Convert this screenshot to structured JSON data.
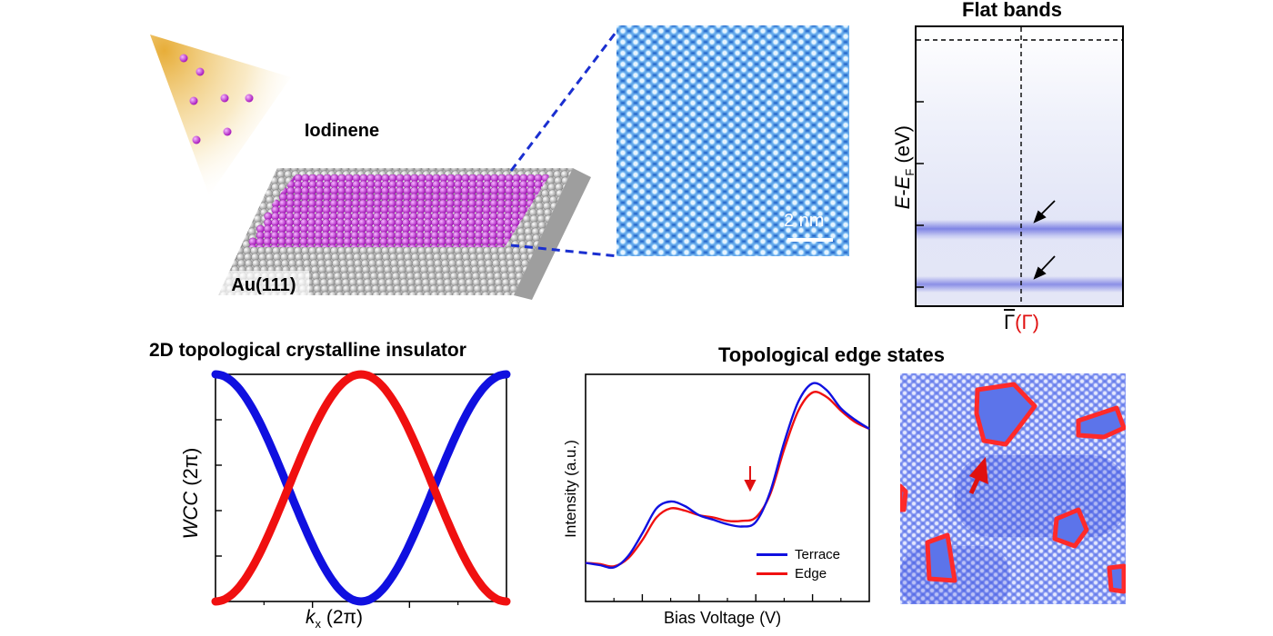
{
  "colors": {
    "iodine": "#c21fd4",
    "gold_fade": "#e8b84a",
    "stm_blue": "#2a78d8",
    "arpes_bg": "#eceff9",
    "arpes_band": "#6f72e0",
    "blue_line": "#1010e0",
    "red_line": "#f01010",
    "edge_bg": "#4c66e6"
  },
  "panel_a": {
    "material_label": "Iodinene",
    "substrate_label": "Au(111)",
    "scale_bar_label": "2 nm"
  },
  "panel_b": {
    "title": "Flat bands",
    "ylabel_e": "E",
    "ylabel_minus": "-",
    "ylabel_ef": "E",
    "ylabel_f_sub": "F",
    "ylabel_unit": " (eV)",
    "xlabel_gamma_bar": "Γ",
    "xlabel_gamma_paren": "(Γ)"
  },
  "panel_c": {
    "title": "2D topological crystalline insulator",
    "ylabel_wcc": "WCC",
    "ylabel_unit": " (2π)",
    "xlabel_k": "k",
    "xlabel_sub": "x",
    "xlabel_unit": " (2π)"
  },
  "panel_d": {
    "title": "Topological edge states",
    "xlabel": "Bias Voltage (V)",
    "ylabel": "Intensity (a.u.)",
    "legend": [
      "Terrace",
      "Edge"
    ]
  },
  "chart_data": [
    {
      "type": "line",
      "title": "2D topological crystalline insulator",
      "xlabel": "kx (2π)",
      "ylabel": "WCC (2π)",
      "xlim": [
        0,
        1
      ],
      "ylim": [
        0,
        1
      ],
      "series": [
        {
          "name": "blue",
          "color": "#1010e0",
          "x": [
            0,
            0.05,
            0.1,
            0.15,
            0.2,
            0.25,
            0.3,
            0.35,
            0.4,
            0.45,
            0.5,
            0.55,
            0.6,
            0.65,
            0.7,
            0.75,
            0.8,
            0.85,
            0.9,
            0.95,
            1.0
          ],
          "y": [
            1.0,
            0.939,
            0.843,
            0.723,
            0.591,
            0.459,
            0.338,
            0.234,
            0.149,
            0.078,
            0.0,
            0.078,
            0.149,
            0.234,
            0.338,
            0.459,
            0.591,
            0.723,
            0.843,
            0.939,
            1.0
          ]
        },
        {
          "name": "red",
          "color": "#f01010",
          "x": [
            0,
            0.05,
            0.1,
            0.15,
            0.2,
            0.25,
            0.3,
            0.35,
            0.4,
            0.45,
            0.5,
            0.55,
            0.6,
            0.65,
            0.7,
            0.75,
            0.8,
            0.85,
            0.9,
            0.95,
            1.0
          ],
          "y": [
            0.0,
            0.061,
            0.157,
            0.277,
            0.409,
            0.541,
            0.662,
            0.766,
            0.851,
            0.922,
            1.0,
            0.922,
            0.851,
            0.766,
            0.662,
            0.541,
            0.409,
            0.277,
            0.157,
            0.061,
            0.0
          ]
        }
      ]
    },
    {
      "type": "line",
      "title": "Topological edge states",
      "xlabel": "Bias Voltage (V)",
      "ylabel": "Intensity (a.u.)",
      "xlim": [
        0,
        1
      ],
      "ylim": [
        0,
        1
      ],
      "series": [
        {
          "name": "Terrace",
          "color": "#1010e0",
          "x": [
            0,
            0.05,
            0.1,
            0.15,
            0.2,
            0.25,
            0.3,
            0.35,
            0.4,
            0.45,
            0.5,
            0.55,
            0.6,
            0.65,
            0.7,
            0.75,
            0.8,
            0.85,
            0.9,
            0.95,
            1.0
          ],
          "y": [
            0.17,
            0.16,
            0.15,
            0.2,
            0.3,
            0.41,
            0.44,
            0.42,
            0.38,
            0.36,
            0.34,
            0.33,
            0.35,
            0.48,
            0.7,
            0.88,
            0.96,
            0.93,
            0.85,
            0.8,
            0.76
          ]
        },
        {
          "name": "Edge",
          "color": "#f01010",
          "x": [
            0,
            0.05,
            0.1,
            0.15,
            0.2,
            0.25,
            0.3,
            0.35,
            0.4,
            0.45,
            0.5,
            0.55,
            0.6,
            0.65,
            0.7,
            0.75,
            0.8,
            0.85,
            0.9,
            0.95,
            1.0
          ],
          "y": [
            0.17,
            0.165,
            0.155,
            0.19,
            0.27,
            0.37,
            0.41,
            0.4,
            0.38,
            0.37,
            0.355,
            0.355,
            0.37,
            0.47,
            0.67,
            0.84,
            0.92,
            0.9,
            0.84,
            0.79,
            0.76
          ]
        }
      ],
      "annotations": [
        "arrow at dip ~0.55"
      ]
    }
  ]
}
